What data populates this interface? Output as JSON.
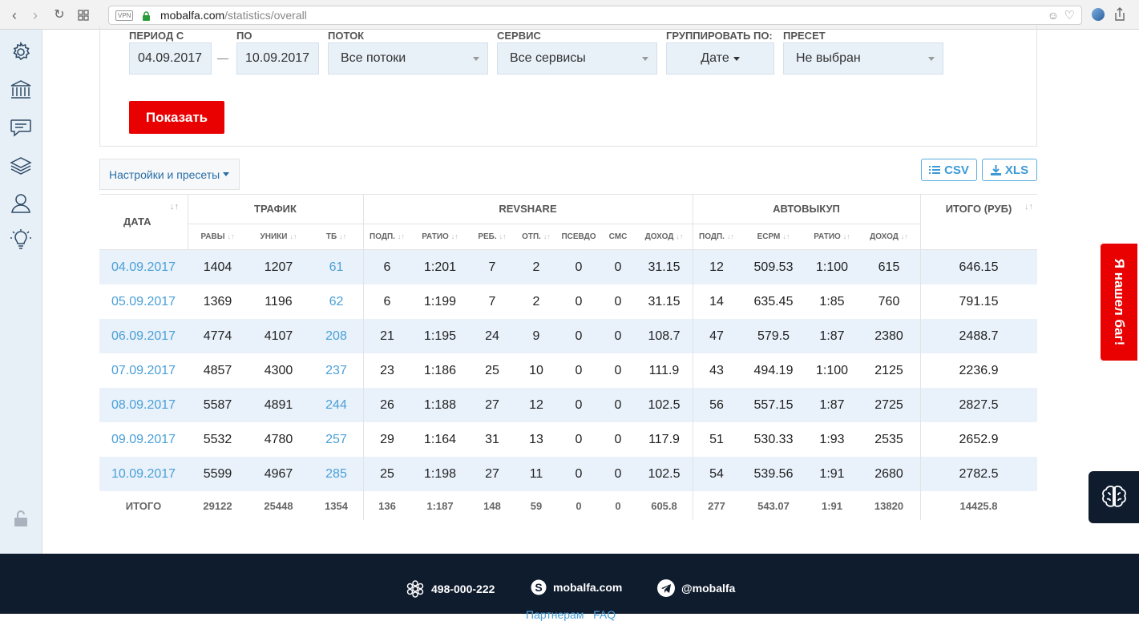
{
  "browser": {
    "vpn": "VPN",
    "url_host": "mobalfa.com",
    "url_path": "/statistics/overall"
  },
  "filters": {
    "period_from_label": "ПЕРИОД С",
    "period_from": "04.09.2017",
    "period_dash": "—",
    "period_to_label": "ПО",
    "period_to": "10.09.2017",
    "stream_label": "ПОТОК",
    "stream": "Все потоки",
    "service_label": "СЕРВИС",
    "service": "Все сервисы",
    "group_label": "ГРУППИРОВАТЬ ПО:",
    "group": "Дате",
    "preset_label": "ПРЕСЕТ",
    "preset": "Не выбран",
    "show_button": "Показать"
  },
  "toolbar": {
    "settings": "Настройки и пресеты",
    "csv": "CSV",
    "xls": "XLS"
  },
  "table": {
    "groups": {
      "date": "ДАТА",
      "traffic": "ТРАФИК",
      "revshare": "REVSHARE",
      "buyout": "АВТОВЫКУП",
      "total": "ИТОГО (РУБ)"
    },
    "columns": {
      "raw": "РАВЫ",
      "uniq": "УНИКИ",
      "tb": "ТБ",
      "rs_sub": "ПОДП.",
      "rs_ratio": "РАТИО",
      "rs_reb": "РЕБ.",
      "rs_unsub": "ОТП.",
      "rs_pseudo": "ПСЕВДО",
      "rs_sms": "СМС",
      "rs_income": "ДОХОД",
      "ab_sub": "ПОДП.",
      "ab_ecpm": "ЕСРМ",
      "ab_ratio": "РАТИО",
      "ab_income": "ДОХОД"
    },
    "rows": [
      [
        "04.09.2017",
        "1404",
        "1207",
        "61",
        "6",
        "1:201",
        "7",
        "2",
        "0",
        "0",
        "31.15",
        "12",
        "509.53",
        "1:100",
        "615",
        "646.15"
      ],
      [
        "05.09.2017",
        "1369",
        "1196",
        "62",
        "6",
        "1:199",
        "7",
        "2",
        "0",
        "0",
        "31.15",
        "14",
        "635.45",
        "1:85",
        "760",
        "791.15"
      ],
      [
        "06.09.2017",
        "4774",
        "4107",
        "208",
        "21",
        "1:195",
        "24",
        "9",
        "0",
        "0",
        "108.7",
        "47",
        "579.5",
        "1:87",
        "2380",
        "2488.7"
      ],
      [
        "07.09.2017",
        "4857",
        "4300",
        "237",
        "23",
        "1:186",
        "25",
        "10",
        "0",
        "0",
        "111.9",
        "43",
        "494.19",
        "1:100",
        "2125",
        "2236.9"
      ],
      [
        "08.09.2017",
        "5587",
        "4891",
        "244",
        "26",
        "1:188",
        "27",
        "12",
        "0",
        "0",
        "102.5",
        "56",
        "557.15",
        "1:87",
        "2725",
        "2827.5"
      ],
      [
        "09.09.2017",
        "5532",
        "4780",
        "257",
        "29",
        "1:164",
        "31",
        "13",
        "0",
        "0",
        "117.9",
        "51",
        "530.33",
        "1:93",
        "2535",
        "2652.9"
      ],
      [
        "10.09.2017",
        "5599",
        "4967",
        "285",
        "25",
        "1:198",
        "27",
        "11",
        "0",
        "0",
        "102.5",
        "54",
        "539.56",
        "1:91",
        "2680",
        "2782.5"
      ]
    ],
    "totals": [
      "ИТОГО",
      "29122",
      "25448",
      "1354",
      "136",
      "1:187",
      "148",
      "59",
      "0",
      "0",
      "605.8",
      "277",
      "543.07",
      "1:91",
      "13820",
      "14425.8"
    ]
  },
  "footer": {
    "phone": "498-000-222",
    "skype": "mobalfa.com",
    "telegram": "@mobalfa",
    "links_partial": "Партнерам   FAQ"
  },
  "bug_button": "Я нашел баг!",
  "colors": {
    "accent_red": "#e90000",
    "link_blue": "#4aa0d8",
    "footer_bg": "#0f1c2e",
    "row_alt": "#e9f1fa"
  }
}
